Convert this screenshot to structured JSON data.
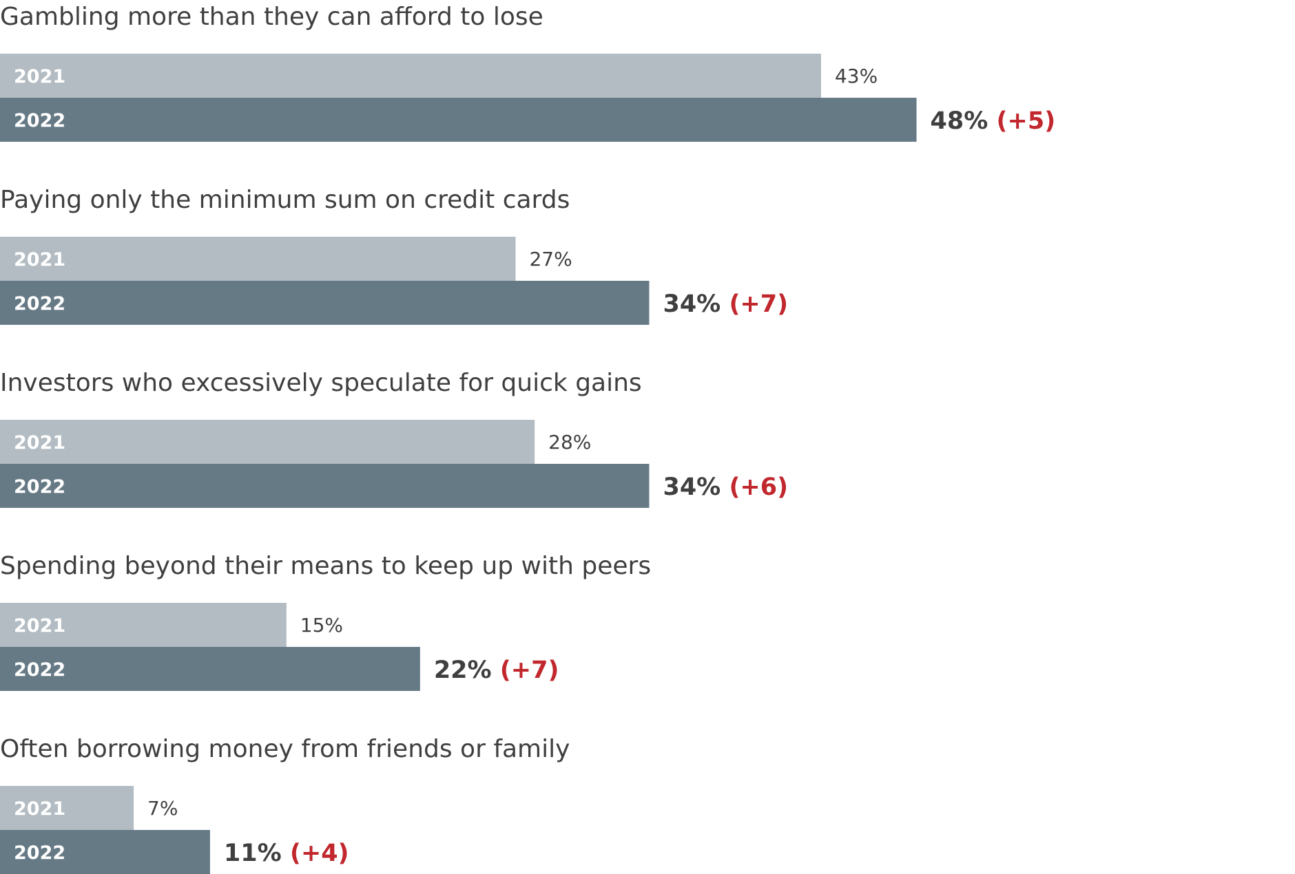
{
  "chart_data": {
    "type": "bar",
    "orientation": "horizontal",
    "series": [
      {
        "name": "2021",
        "color": "#b2bcc2"
      },
      {
        "name": "2022",
        "color": "#667a86"
      }
    ],
    "categories": [
      {
        "label": "Gambling more than they can afford to lose",
        "v2021": 43,
        "v2022": 48,
        "v2021_text": "43%",
        "v2022_text": "48%",
        "delta_text": "(+5)"
      },
      {
        "label": "Paying only the minimum sum on credit cards",
        "v2021": 27,
        "v2022": 34,
        "v2021_text": "27%",
        "v2022_text": "34%",
        "delta_text": "(+7)"
      },
      {
        "label": "Investors who excessively speculate for quick gains",
        "v2021": 28,
        "v2022": 34,
        "v2021_text": "28%",
        "v2022_text": "34%",
        "delta_text": "(+6)"
      },
      {
        "label": "Spending beyond their means to keep up with peers",
        "v2021": 15,
        "v2022": 22,
        "v2021_text": "15%",
        "v2022_text": "22%",
        "delta_text": "(+7)"
      },
      {
        "label": "Often borrowing money from friends or family",
        "v2021": 7,
        "v2022": 11,
        "v2021_text": "7%",
        "v2022_text": "11%",
        "delta_text": "(+4)"
      }
    ],
    "year_labels": {
      "y2021": "2021",
      "y2022": "2022"
    },
    "value_unit": "%",
    "colors": {
      "text": "#3f3f3f",
      "delta": "#c1272d",
      "bar_label": "#ffffff"
    }
  }
}
